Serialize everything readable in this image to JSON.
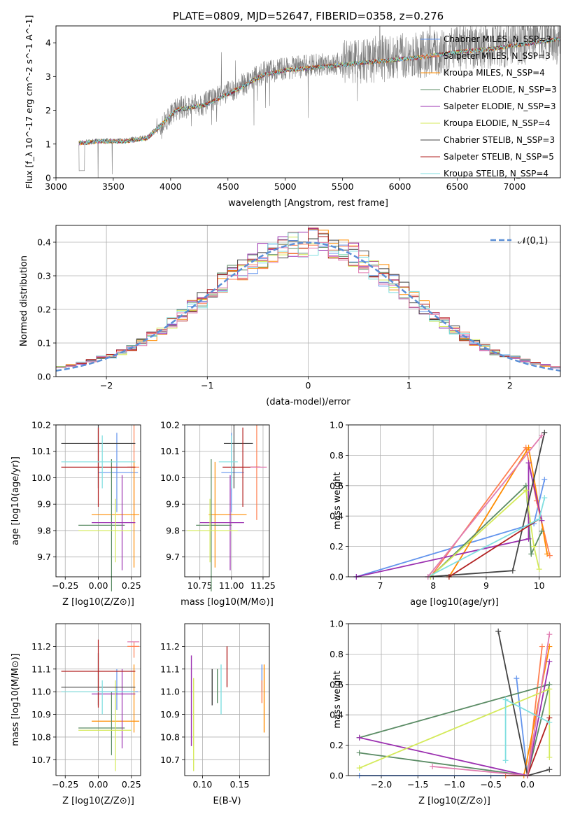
{
  "colors": {
    "c_miles": "#6495ed",
    "s_miles": "#ff7f50",
    "k_miles": "#ff8c00",
    "c_elodie": "#5b8c65",
    "s_elodie": "#9b30b0",
    "k_elodie": "#d4ea5a",
    "c_stelib": "#444444",
    "s_stelib": "#b22222",
    "k_stelib": "#7fdfe0",
    "spectrum": "#808080",
    "pink": "#e07bb0",
    "normal": "#5b8fd6"
  },
  "chart_data": [
    {
      "type": "line",
      "title": "PLATE=0809, MJD=52647, FIBERID=0358, z=0.276",
      "xlabel": "wavelength [Angstrom, rest frame]",
      "ylabel": "Flux [f_λ 10^-17 erg cm^-2 s^-1 A^-1]",
      "xlim": [
        3000,
        7400
      ],
      "ylim": [
        0,
        4.5
      ],
      "xticks": [
        3000,
        3500,
        4000,
        4500,
        5000,
        5500,
        6000,
        6500,
        7000
      ],
      "yticks": [
        0,
        1,
        2,
        3,
        4
      ],
      "grid": false,
      "legend_position": "top-right",
      "continuum": [
        [
          3200,
          1.05
        ],
        [
          3400,
          1.1
        ],
        [
          3600,
          1.1
        ],
        [
          3800,
          1.2
        ],
        [
          3950,
          1.7
        ],
        [
          4050,
          2.05
        ],
        [
          4300,
          2.2
        ],
        [
          4600,
          2.7
        ],
        [
          4800,
          3.1
        ],
        [
          5000,
          3.25
        ],
        [
          5300,
          3.35
        ],
        [
          5600,
          3.45
        ],
        [
          5900,
          3.55
        ],
        [
          6200,
          3.65
        ],
        [
          6500,
          3.8
        ],
        [
          6800,
          3.9
        ],
        [
          7000,
          4.0
        ],
        [
          7400,
          4.2
        ]
      ],
      "series": [
        {
          "name": "Chabrier MILES, N_SSP=3",
          "color_key": "c_miles"
        },
        {
          "name": "Salpeter MILES, N_SSP=3",
          "color_key": "s_miles"
        },
        {
          "name": "Kroupa MILES, N_SSP=4",
          "color_key": "k_miles"
        },
        {
          "name": "Chabrier ELODIE, N_SSP=3",
          "color_key": "c_elodie"
        },
        {
          "name": "Salpeter ELODIE, N_SSP=3",
          "color_key": "s_elodie"
        },
        {
          "name": "Kroupa ELODIE, N_SSP=4",
          "color_key": "k_elodie"
        },
        {
          "name": "Chabrier STELIB, N_SSP=3",
          "color_key": "c_stelib"
        },
        {
          "name": "Salpeter STELIB, N_SSP=5",
          "color_key": "s_stelib"
        },
        {
          "name": "Kroupa STELIB, N_SSP=4",
          "color_key": "k_stelib"
        }
      ]
    },
    {
      "type": "histogram",
      "xlabel": "(data-model)/error",
      "ylabel": "Normed distribution",
      "xlim": [
        -2.5,
        2.5
      ],
      "ylim": [
        0,
        0.45
      ],
      "xticks": [
        -2,
        -1,
        0,
        1,
        2
      ],
      "yticks": [
        0.0,
        0.1,
        0.2,
        0.3,
        0.4
      ],
      "grid": true,
      "bin_width": 0.1,
      "bins_start": -2.5,
      "legend": "𝒩(0,1)",
      "legend_position": "top-right"
    },
    {
      "type": "scatter",
      "xlabel": "Z [log10(Z/Z⊙)]",
      "ylabel": "age  [log10(age/yr)]",
      "xlim": [
        -0.32,
        0.32
      ],
      "ylim": [
        9.625,
        10.2
      ],
      "xticks": [
        -0.25,
        0.0,
        0.25
      ],
      "xticklabels": [
        "−0.25",
        "0.00",
        "0.25"
      ],
      "yticks": [
        9.7,
        9.8,
        9.9,
        10.0,
        10.1,
        10.2
      ],
      "yticklabels": [
        "9.7",
        "9.8",
        "9.9",
        "10.0",
        "10.1",
        "10.2"
      ],
      "grid": true
    },
    {
      "type": "scatter",
      "xlabel": "mass [log10(M/M⊙)]",
      "xlim": [
        10.63,
        11.3
      ],
      "ylim": [
        9.625,
        10.2
      ],
      "xticks": [
        10.75,
        11.0,
        11.25
      ],
      "xticklabels": [
        "10.75",
        "11.00",
        "11.25"
      ],
      "yticks": [
        9.7,
        9.8,
        9.9,
        10.0,
        10.1,
        10.2
      ],
      "yticklabels": [
        "9.7",
        "9.8",
        "9.9",
        "10.0",
        "10.1",
        "10.2"
      ],
      "grid": true
    },
    {
      "type": "line",
      "xlabel": "age  [log10(age/yr)]",
      "ylabel": "mass weight",
      "xlim": [
        6.4,
        10.4
      ],
      "ylim": [
        0,
        1.0
      ],
      "xticks": [
        7,
        8,
        9,
        10
      ],
      "xticklabels": [
        "7",
        "8",
        "9",
        "10"
      ],
      "yticks": [
        0.0,
        0.2,
        0.4,
        0.6,
        0.8,
        1.0
      ],
      "yticklabels": [
        "0.0",
        "0.2",
        "0.4",
        "0.6",
        "0.8",
        "1.0"
      ],
      "grid": true
    },
    {
      "type": "scatter",
      "xlabel": "Z [log10(Z/Z⊙)]",
      "ylabel": "mass [log10(M/M⊙)]",
      "xlim": [
        -0.32,
        0.32
      ],
      "ylim": [
        10.63,
        11.3
      ],
      "xticks": [
        -0.25,
        0.0,
        0.25
      ],
      "xticklabels": [
        "−0.25",
        "0.00",
        "0.25"
      ],
      "yticks": [
        10.7,
        10.8,
        10.9,
        11.0,
        11.1,
        11.2
      ],
      "yticklabels": [
        "10.7",
        "10.8",
        "10.9",
        "11.0",
        "11.1",
        "11.2"
      ],
      "grid": true
    },
    {
      "type": "scatter",
      "xlabel": "E(B-V)",
      "xlim": [
        0.076,
        0.19
      ],
      "ylim": [
        10.63,
        11.3
      ],
      "xticks": [
        0.1,
        0.15
      ],
      "xticklabels": [
        "0.10",
        "0.15"
      ],
      "yticks": [
        10.7,
        10.8,
        10.9,
        11.0,
        11.1,
        11.2
      ],
      "yticklabels": [
        "10.7",
        "10.8",
        "10.9",
        "11.0",
        "11.1",
        "11.2"
      ],
      "grid": true
    },
    {
      "type": "line",
      "xlabel": "Z [log10(Z/Z⊙)]",
      "ylabel": "mass weight",
      "xlim": [
        -2.45,
        0.45
      ],
      "ylim": [
        0,
        1.0
      ],
      "xticks": [
        -2.0,
        -1.5,
        -1.0,
        -0.5,
        0.0
      ],
      "xticklabels": [
        "−2.0",
        "−1.5",
        "−1.0",
        "−0.5",
        "0.0"
      ],
      "yticks": [
        0.0,
        0.2,
        0.4,
        0.6,
        0.8,
        1.0
      ],
      "yticklabels": [
        "0.0",
        "0.2",
        "0.4",
        "0.6",
        "0.8",
        "1.0"
      ],
      "grid": true
    }
  ],
  "fits": [
    {
      "color_key": "c_miles",
      "Z": 0.14,
      "Zlo": 0.0,
      "Zhi": 0.3,
      "age": 10.02,
      "ageErr": 0.15,
      "mass": 11.0,
      "massLo": 10.92,
      "massHi": 11.1,
      "ebv": 0.18,
      "ebvLo": 11.0,
      "ebvHi": 11.12,
      "ageW": [
        [
          6.55,
          0.0
        ],
        [
          9.9,
          0.35
        ],
        [
          10.1,
          0.64
        ]
      ],
      "ZW": [
        [
          -2.3,
          0.0
        ],
        [
          0.0,
          0.0
        ],
        [
          -0.15,
          0.64
        ]
      ]
    },
    {
      "color_key": "s_miles",
      "Z": 0.27,
      "Zlo": 0.22,
      "Zhi": 0.31,
      "age": 10.04,
      "ageErr": 0.2,
      "mass": 11.2,
      "massLo": 11.15,
      "massHi": 11.22,
      "ebv": 0.18,
      "ebvLo": 10.95,
      "ebvHi": 11.05,
      "ageW": [
        [
          7.95,
          0.0
        ],
        [
          9.75,
          0.85
        ],
        [
          9.95,
          0.5
        ],
        [
          10.2,
          0.14
        ]
      ],
      "ZW": [
        [
          -0.3,
          0.0
        ],
        [
          0.0,
          0.0
        ],
        [
          0.2,
          0.85
        ]
      ]
    },
    {
      "color_key": "k_miles",
      "Z": 0.27,
      "Zlo": -0.05,
      "Zhi": 0.31,
      "age": 9.86,
      "ageErr": 0.2,
      "mass": 10.87,
      "massLo": 10.82,
      "massHi": 11.12,
      "ebv": 0.183,
      "ebvLo": 10.82,
      "ebvHi": 11.12,
      "ageW": [
        [
          8.3,
          0.0
        ],
        [
          9.8,
          0.85
        ],
        [
          10.15,
          0.15
        ]
      ],
      "ZW": [
        [
          -0.05,
          0.0
        ],
        [
          0.3,
          0.85
        ]
      ]
    },
    {
      "color_key": "c_elodie",
      "Z": 0.1,
      "Zlo": -0.15,
      "Zhi": 0.2,
      "age": 9.82,
      "ageErr": 0.25,
      "mass": 10.84,
      "massLo": 10.72,
      "massHi": 11.0,
      "ebv": 0.12,
      "ebvLo": 10.95,
      "ebvHi": 11.1,
      "ageW": [
        [
          7.95,
          0.0
        ],
        [
          9.75,
          0.6
        ],
        [
          9.85,
          0.15
        ],
        [
          10.05,
          0.3
        ]
      ],
      "ZW": [
        [
          -2.3,
          0.25
        ],
        [
          0.3,
          0.6
        ],
        [
          0.0,
          0.0
        ],
        [
          -2.3,
          0.15
        ]
      ]
    },
    {
      "color_key": "s_elodie",
      "Z": 0.18,
      "Zlo": -0.05,
      "Zhi": 0.28,
      "age": 9.83,
      "ageErr": 0.18,
      "mass": 10.99,
      "massLo": 10.75,
      "massHi": 11.1,
      "ebv": 0.085,
      "ebvLo": 10.76,
      "ebvHi": 11.16,
      "ageW": [
        [
          6.55,
          0.0
        ],
        [
          9.8,
          0.25
        ],
        [
          9.8,
          0.75
        ],
        [
          10.05,
          0.37
        ]
      ],
      "ZW": [
        [
          -2.3,
          0.25
        ],
        [
          0.0,
          0.0
        ],
        [
          0.3,
          0.75
        ]
      ]
    },
    {
      "color_key": "k_elodie",
      "Z": 0.13,
      "Zlo": -0.15,
      "Zhi": 0.25,
      "age": 9.8,
      "ageErr": 0.12,
      "mass": 10.83,
      "massLo": 10.65,
      "massHi": 11.05,
      "ebv": 0.088,
      "ebvLo": 10.65,
      "ebvHi": 11.06,
      "ageW": [
        [
          7.95,
          0.0
        ],
        [
          9.75,
          0.57
        ],
        [
          9.9,
          0.2
        ],
        [
          10.0,
          0.05
        ]
      ],
      "ZW": [
        [
          -2.3,
          0.05
        ],
        [
          0.3,
          0.57
        ],
        [
          0.3,
          0.12
        ]
      ]
    },
    {
      "color_key": "c_stelib",
      "Z": 0.0,
      "Zlo": -0.28,
      "Zhi": 0.28,
      "age": 10.13,
      "ageErr": 0.17,
      "mass": 11.02,
      "massLo": 10.94,
      "massHi": 11.17,
      "ebv": 0.113,
      "ebvLo": 10.94,
      "ebvHi": 11.1,
      "ageW": [
        [
          7.9,
          0.0
        ],
        [
          9.5,
          0.04
        ],
        [
          10.1,
          0.95
        ]
      ],
      "ZW": [
        [
          0.3,
          0.04
        ],
        [
          0.0,
          0.0
        ],
        [
          -0.4,
          0.95
        ]
      ]
    },
    {
      "color_key": "s_stelib",
      "Z": 0.0,
      "Zlo": -0.28,
      "Zhi": 0.28,
      "age": 10.04,
      "ageErr": 0.15,
      "mass": 11.09,
      "massLo": 10.93,
      "massHi": 11.23,
      "ebv": 0.133,
      "ebvLo": 11.02,
      "ebvHi": 11.2,
      "ageW": [
        [
          8.3,
          0.0
        ],
        [
          10.0,
          0.38
        ]
      ],
      "ZW": [
        [
          0.0,
          0.0
        ],
        [
          0.3,
          0.38
        ]
      ]
    },
    {
      "color_key": "k_stelib",
      "Z": 0.03,
      "Zlo": -0.28,
      "Zhi": 0.28,
      "age": 10.06,
      "ageErr": 0.1,
      "mass": 11.0,
      "massLo": 10.9,
      "massHi": 11.05,
      "ebv": 0.125,
      "ebvLo": 10.9,
      "ebvHi": 11.12,
      "ageW": [
        [
          7.9,
          0.0
        ],
        [
          10.0,
          0.38
        ],
        [
          10.1,
          0.52
        ]
      ],
      "ZW": [
        [
          -0.3,
          0.1
        ],
        [
          -0.3,
          0.5
        ],
        [
          0.3,
          0.35
        ]
      ]
    },
    {
      "color_key": "pink",
      "Z": 0.27,
      "Zlo": 0.22,
      "Zhi": 0.31,
      "age": 10.04,
      "ageErr": 0.0,
      "mass": 11.22,
      "massLo": 11.22,
      "massHi": 11.22,
      "ebv": 0.0,
      "ebvLo": 0,
      "ebvHi": 0,
      "ageW": [
        [
          7.9,
          0.0
        ],
        [
          10.05,
          0.93
        ]
      ],
      "ZW": [
        [
          -1.3,
          0.06
        ],
        [
          0.0,
          0.0
        ],
        [
          0.3,
          0.93
        ]
      ]
    }
  ]
}
